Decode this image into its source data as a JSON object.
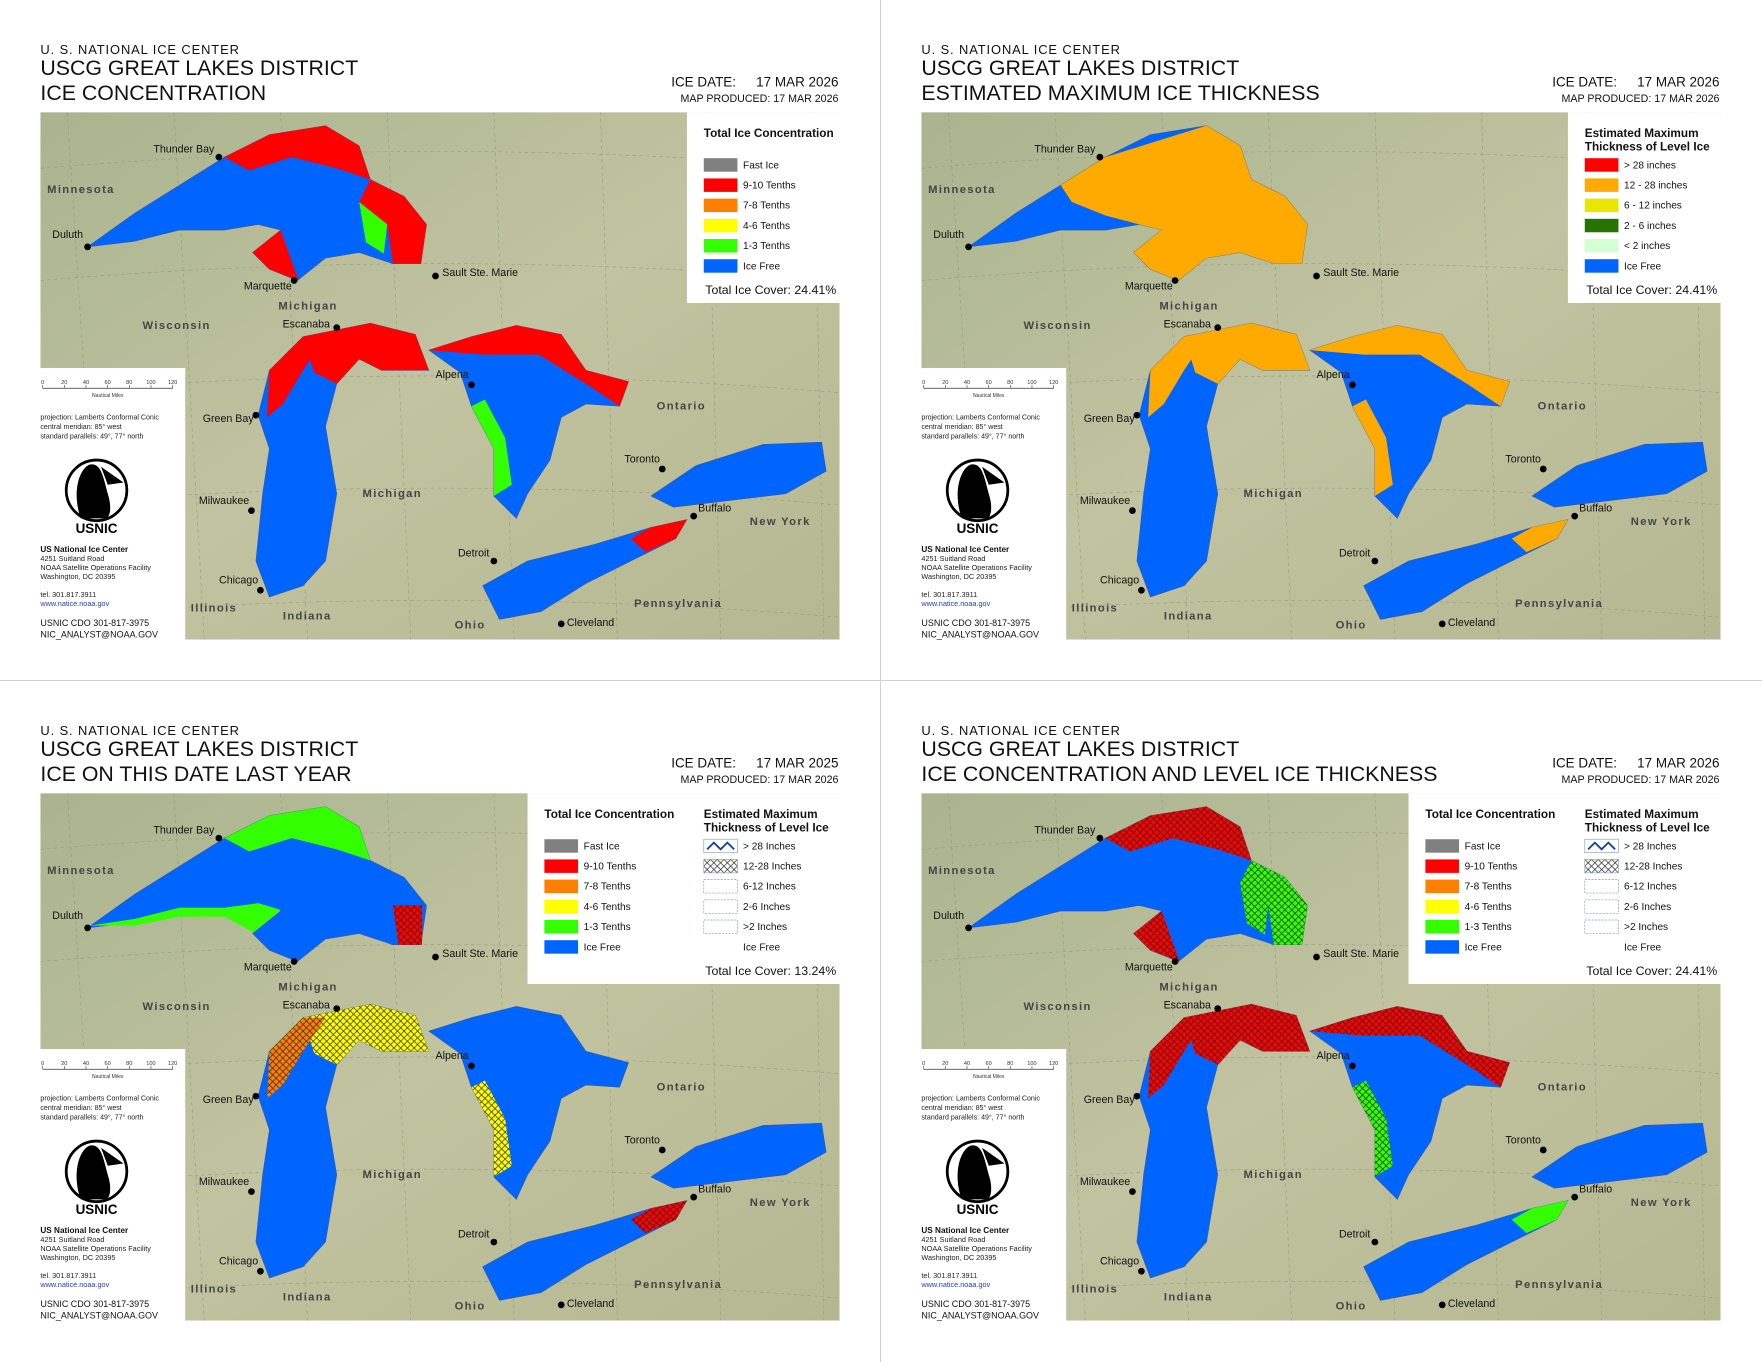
{
  "panels": [
    {
      "agency": "U. S. NATIONAL ICE CENTER",
      "title_lines": [
        "USCG GREAT LAKES DISTRICT",
        "ICE CONCENTRATION"
      ],
      "ice_date_label": "ICE DATE:",
      "ice_date": "17 MAR 2026",
      "map_produced": "MAP PRODUCED:  17 MAR 2026",
      "legends": [
        {
          "title": [
            "Total Ice Concentration"
          ],
          "items": [
            {
              "label": "Fast Ice",
              "color": "#808080"
            },
            {
              "label": "9-10 Tenths",
              "color": "#ff0000"
            },
            {
              "label": "7-8 Tenths",
              "color": "#ff8000"
            },
            {
              "label": "4-6 Tenths",
              "color": "#ffff00"
            },
            {
              "label": "1-3 Tenths",
              "color": "#33ff00"
            },
            {
              "label": "Ice Free",
              "color": "#0064ff"
            }
          ]
        }
      ],
      "total": "Total Ice Cover: 24.41%"
    },
    {
      "agency": "U. S. NATIONAL ICE CENTER",
      "title_lines": [
        "USCG GREAT LAKES DISTRICT",
        "ESTIMATED MAXIMUM ICE THICKNESS"
      ],
      "ice_date_label": "ICE DATE:",
      "ice_date": "17 MAR 2026",
      "map_produced": "MAP PRODUCED:  17 MAR 2026",
      "legends": [
        {
          "title": [
            "Estimated Maximum",
            "Thickness of Level Ice"
          ],
          "items": [
            {
              "label": "> 28 inches",
              "color": "#ff0000"
            },
            {
              "label": "12 - 28 inches",
              "color": "#ffaa00"
            },
            {
              "label": "6 - 12 inches",
              "color": "#e6e600"
            },
            {
              "label": "2 - 6 inches",
              "color": "#267300"
            },
            {
              "label": "< 2 inches",
              "color": "#d3ffd3"
            },
            {
              "label": "Ice Free",
              "color": "#0064ff"
            }
          ]
        }
      ],
      "total": "Total Ice Cover: 24.41%"
    },
    {
      "agency": "U. S. NATIONAL ICE CENTER",
      "title_lines": [
        "USCG GREAT LAKES DISTRICT",
        "ICE ON THIS DATE LAST YEAR"
      ],
      "ice_date_label": "ICE DATE:",
      "ice_date": "17 MAR 2025",
      "map_produced": "MAP PRODUCED:  17 MAR 2026",
      "legends": [
        {
          "title": [
            "Total Ice Concentration"
          ],
          "items": [
            {
              "label": "Fast Ice",
              "color": "#808080"
            },
            {
              "label": "9-10 Tenths",
              "color": "#ff0000"
            },
            {
              "label": "7-8 Tenths",
              "color": "#ff8000"
            },
            {
              "label": "4-6 Tenths",
              "color": "#ffff00"
            },
            {
              "label": "1-3 Tenths",
              "color": "#33ff00"
            },
            {
              "label": "Ice Free",
              "color": "#0064ff"
            }
          ]
        },
        {
          "title": [
            "Estimated Maximum",
            "Thickness of Level Ice"
          ],
          "items": [
            {
              "label": "> 28 Inches"
            },
            {
              "label": "12-28 Inches"
            },
            {
              "label": "6-12 Inches"
            },
            {
              "label": "2-6 Inches"
            },
            {
              "label": ">2 Inches"
            },
            {
              "label": "Ice Free"
            }
          ]
        }
      ],
      "total": "Total Ice Cover: 13.24%"
    },
    {
      "agency": "U. S. NATIONAL ICE CENTER",
      "title_lines": [
        "USCG GREAT LAKES DISTRICT",
        "ICE CONCENTRATION AND LEVEL ICE THICKNESS"
      ],
      "ice_date_label": "ICE DATE:",
      "ice_date": "17 MAR 2026",
      "map_produced": "MAP PRODUCED:  17 MAR 2026",
      "legends": [
        {
          "title": [
            "Total Ice Concentration"
          ],
          "items": [
            {
              "label": "Fast Ice",
              "color": "#808080"
            },
            {
              "label": "9-10 Tenths",
              "color": "#ff0000"
            },
            {
              "label": "7-8 Tenths",
              "color": "#ff8000"
            },
            {
              "label": "4-6 Tenths",
              "color": "#ffff00"
            },
            {
              "label": "1-3 Tenths",
              "color": "#33ff00"
            },
            {
              "label": "Ice Free",
              "color": "#0064ff"
            }
          ]
        },
        {
          "title": [
            "Estimated Maximum",
            "Thickness of Level Ice"
          ],
          "items": [
            {
              "label": "> 28 Inches"
            },
            {
              "label": "12-28 Inches"
            },
            {
              "label": "6-12 Inches"
            },
            {
              "label": "2-6 Inches"
            },
            {
              "label": ">2 Inches"
            },
            {
              "label": "Ice Free"
            }
          ]
        }
      ],
      "total": "Total Ice Cover: 24.41%"
    }
  ],
  "common": {
    "places": [
      {
        "name": "Thunder Bay"
      },
      {
        "name": "Duluth"
      },
      {
        "name": "Marquette"
      },
      {
        "name": "Sault Ste. Marie"
      },
      {
        "name": "Escanaba"
      },
      {
        "name": "Green Bay"
      },
      {
        "name": "Alpena"
      },
      {
        "name": "Milwaukee"
      },
      {
        "name": "Chicago"
      },
      {
        "name": "Toronto"
      },
      {
        "name": "Buffalo"
      },
      {
        "name": "Detroit"
      },
      {
        "name": "Cleveland"
      }
    ],
    "regions": [
      {
        "name": "Minnesota"
      },
      {
        "name": "Michigan"
      },
      {
        "name": "Wisconsin"
      },
      {
        "name": "Ontario"
      },
      {
        "name": "Michigan"
      },
      {
        "name": "New York"
      },
      {
        "name": "Illinois"
      },
      {
        "name": "Indiana"
      },
      {
        "name": "Ohio"
      },
      {
        "name": "Pennsylvania"
      }
    ],
    "scale_labels": [
      "0",
      "20",
      "40",
      "60",
      "80",
      "100",
      "120"
    ],
    "scale_unit": "Nautical Miles",
    "projection": [
      "projection: Lamberts Conformal Conic",
      "central meridian: 85° west",
      "standard parallels: 49°, 77° north"
    ],
    "logo_text": "USNIC",
    "org": "US National Ice Center",
    "address": [
      "4251 Suitland Road",
      "NOAA Satellite Operations Facility",
      "Washington, DC  20395"
    ],
    "tel": "tel. 301.817.3911",
    "url": "www.natice.noaa.gov",
    "contact": [
      "USNIC CDO 301-817-3975",
      "NIC_ANALYST@NOAA.GOV"
    ]
  }
}
